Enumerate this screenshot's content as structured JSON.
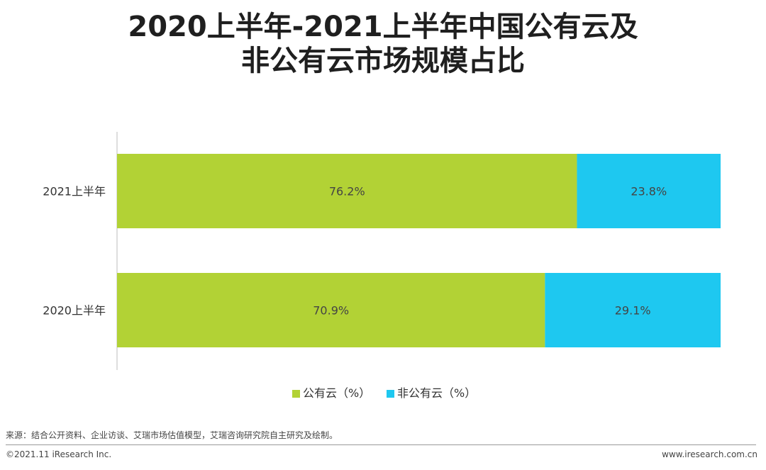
{
  "title_line1": "2020上半年-2021上半年中国公有云及",
  "title_line2": "非公有云市场规模占比",
  "chart_data": {
    "type": "bar",
    "orientation": "horizontal",
    "stacked": true,
    "categories": [
      "2021上半年",
      "2020上半年"
    ],
    "series": [
      {
        "name": "公有云（%）",
        "values": [
          76.2,
          70.9
        ],
        "labels": [
          "76.2%",
          "70.9%"
        ],
        "color": "#b2d235"
      },
      {
        "name": "非公有云（%）",
        "values": [
          23.8,
          29.1
        ],
        "labels": [
          "23.8%",
          "29.1%"
        ],
        "color": "#1ec8f0"
      }
    ],
    "xlim": [
      0,
      100
    ],
    "grid": false,
    "legend_position": "bottom"
  },
  "footer": {
    "source": "来源：结合公开资料、企业访谈、艾瑞市场估值模型，艾瑞咨询研究院自主研究及绘制。",
    "copyright": "©2021.11 iResearch Inc.",
    "website": "www.iresearch.com.cn"
  }
}
